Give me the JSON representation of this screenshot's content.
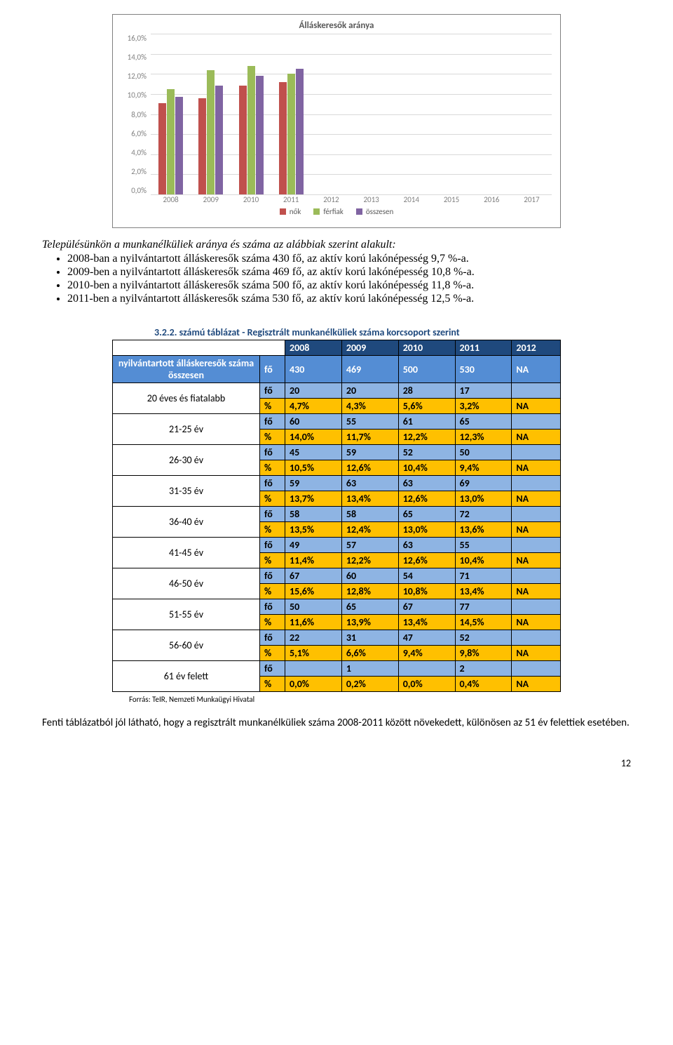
{
  "chart": {
    "type": "bar",
    "title": "Álláskeresők aránya",
    "y_ticks": [
      "16,0%",
      "14,0%",
      "12,0%",
      "10,0%",
      "8,0%",
      "6,0%",
      "4,0%",
      "2,0%",
      "0,0%"
    ],
    "ymax": 16,
    "x_categories": [
      "2008",
      "2009",
      "2010",
      "2011",
      "2012",
      "2013",
      "2014",
      "2015",
      "2016",
      "2017"
    ],
    "series": [
      {
        "name": "nők",
        "color": "#c0504d",
        "values": [
          9.1,
          9.6,
          10.8,
          11.2,
          null,
          null,
          null,
          null,
          null,
          null
        ]
      },
      {
        "name": "férfiak",
        "color": "#9bbb59",
        "values": [
          10.5,
          12.4,
          12.8,
          12.0,
          null,
          null,
          null,
          null,
          null,
          null
        ]
      },
      {
        "name": "összesen",
        "color": "#8064a2",
        "values": [
          9.7,
          10.8,
          11.8,
          12.5,
          null,
          null,
          null,
          null,
          null,
          null
        ]
      }
    ],
    "grid_color": "#d9d9d9",
    "axis_text_color": "#7f7f7f",
    "border_color": "#808080"
  },
  "intro_text": "Településünkön a munkanélküliek aránya és száma az alábbiak szerint alakult:",
  "bullets": [
    "2008-ban a nyilvántartott álláskeresők száma 430 fő, az aktív korú lakónépesség   9,7 %-a.",
    "2009-ben a nyilvántartott álláskeresők száma 469 fő, az aktív korú lakónépesség 10,8 %-a.",
    "2010-ben a nyilvántartott álláskeresők száma 500 fő, az aktív korú lakónépesség 11,8 %-a.",
    "2011-ben a nyilvántartott álláskeresők száma 530 fő, az aktív korú lakónépesség 12,5 %-a."
  ],
  "table": {
    "caption": "3.2.2. számú táblázat - Regisztrált munkanélküliek száma korcsoport szerint",
    "years": [
      "2008",
      "2009",
      "2010",
      "2011",
      "2012"
    ],
    "total_label": "nyilvántartott álláskeresők száma összesen",
    "total_unit": "fő",
    "total_values": [
      "430",
      "469",
      "500",
      "530",
      "NA"
    ],
    "unit_fo": "fő",
    "unit_pct": "%",
    "groups": [
      {
        "label": "20 éves és fiatalabb",
        "fo": [
          "20",
          "20",
          "28",
          "17",
          ""
        ],
        "pct": [
          "4,7%",
          "4,3%",
          "5,6%",
          "3,2%",
          "NA"
        ]
      },
      {
        "label": "21-25 év",
        "fo": [
          "60",
          "55",
          "61",
          "65",
          ""
        ],
        "pct": [
          "14,0%",
          "11,7%",
          "12,2%",
          "12,3%",
          "NA"
        ]
      },
      {
        "label": "26-30 év",
        "fo": [
          "45",
          "59",
          "52",
          "50",
          ""
        ],
        "pct": [
          "10,5%",
          "12,6%",
          "10,4%",
          "9,4%",
          "NA"
        ]
      },
      {
        "label": "31-35 év",
        "fo": [
          "59",
          "63",
          "63",
          "69",
          ""
        ],
        "pct": [
          "13,7%",
          "13,4%",
          "12,6%",
          "13,0%",
          "NA"
        ]
      },
      {
        "label": "36-40 év",
        "fo": [
          "58",
          "58",
          "65",
          "72",
          ""
        ],
        "pct": [
          "13,5%",
          "12,4%",
          "13,0%",
          "13,6%",
          "NA"
        ]
      },
      {
        "label": "41-45 év",
        "fo": [
          "49",
          "57",
          "63",
          "55",
          ""
        ],
        "pct": [
          "11,4%",
          "12,2%",
          "12,6%",
          "10,4%",
          "NA"
        ]
      },
      {
        "label": "46-50 év",
        "fo": [
          "67",
          "60",
          "54",
          "71",
          ""
        ],
        "pct": [
          "15,6%",
          "12,8%",
          "10,8%",
          "13,4%",
          "NA"
        ]
      },
      {
        "label": "51-55 év",
        "fo": [
          "50",
          "65",
          "67",
          "77",
          ""
        ],
        "pct": [
          "11,6%",
          "13,9%",
          "13,4%",
          "14,5%",
          "NA"
        ]
      },
      {
        "label": "56-60 év",
        "fo": [
          "22",
          "31",
          "47",
          "52",
          ""
        ],
        "pct": [
          "5,1%",
          "6,6%",
          "9,4%",
          "9,8%",
          "NA"
        ]
      },
      {
        "label": "61 év felett",
        "fo": [
          "",
          "1",
          "",
          "2",
          ""
        ],
        "pct": [
          "0,0%",
          "0,2%",
          "0,0%",
          "0,4%",
          "NA"
        ]
      }
    ],
    "header_bg": "#1f497d",
    "total_bg": "#548dd4",
    "fo_bg": "#8eb4e3",
    "pct_bg": "#ffc000"
  },
  "source_note": "Forrás: TeIR, Nemzeti Munkaügyi Hivatal",
  "closing_text": "Fenti táblázatból jól látható, hogy a regisztrált munkanélküliek száma 2008-2011 között növekedett, különösen az 51 év felettiek esetében.",
  "page_number": "12"
}
